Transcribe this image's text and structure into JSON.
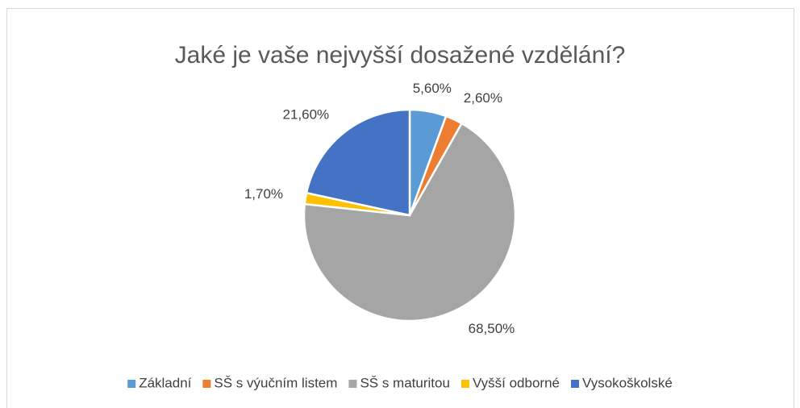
{
  "chart_data": {
    "type": "pie",
    "title": "Jaké je vaše nejvyšší dosažené vzdělání?",
    "categories": [
      "Základní",
      "SŠ s výučním listem",
      "SŠ s maturitou",
      "Vyšší odborné",
      "Vysokoškolské"
    ],
    "values": [
      5.6,
      2.6,
      68.5,
      1.7,
      21.6
    ],
    "value_labels": [
      "5,60%",
      "2,60%",
      "68,50%",
      "1,70%",
      "21,60%"
    ],
    "colors": [
      "#5b9bd5",
      "#ed7d31",
      "#a5a5a5",
      "#ffc000",
      "#4472c4"
    ],
    "legend": "bottom"
  }
}
